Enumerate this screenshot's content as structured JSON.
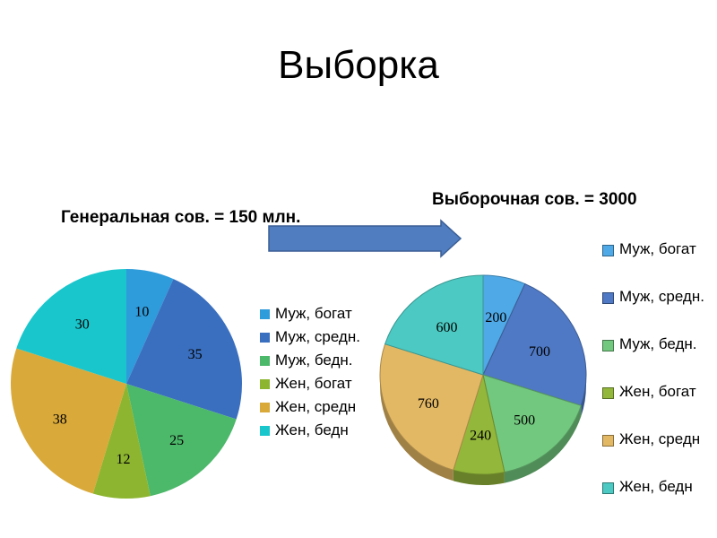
{
  "page": {
    "title": "Выборка"
  },
  "labels": {
    "general": "Генеральная сов. = 150 млн.",
    "sample": "Выборочная сов. = 3000"
  },
  "chart_data": [
    {
      "type": "pie",
      "categories": [
        "Муж, богат",
        "Муж, средн.",
        "Муж, бедн.",
        "Жен, богат",
        "Жен, средн",
        "Жен, бедн"
      ],
      "values": [
        10,
        35,
        25,
        12,
        38,
        30
      ],
      "colors": [
        "#2E9BDB",
        "#3A6FBF",
        "#4CB86A",
        "#8DB530",
        "#D9A93A",
        "#18C6CC"
      ],
      "title": "",
      "legend": "right"
    },
    {
      "type": "pie",
      "style": "3d",
      "categories": [
        "Муж, богат",
        "Муж, средн.",
        "Муж, бедн.",
        "Жен, богат",
        "Жен, средн",
        "Жен, бедн"
      ],
      "values": [
        200,
        700,
        500,
        240,
        760,
        600
      ],
      "colors": [
        "#4FA9E6",
        "#4F79C4",
        "#72C87E",
        "#93B73A",
        "#E3B864",
        "#4CC9C2"
      ],
      "title": "",
      "legend": "right"
    }
  ],
  "arrow": {
    "color": "#4F7DC0"
  }
}
